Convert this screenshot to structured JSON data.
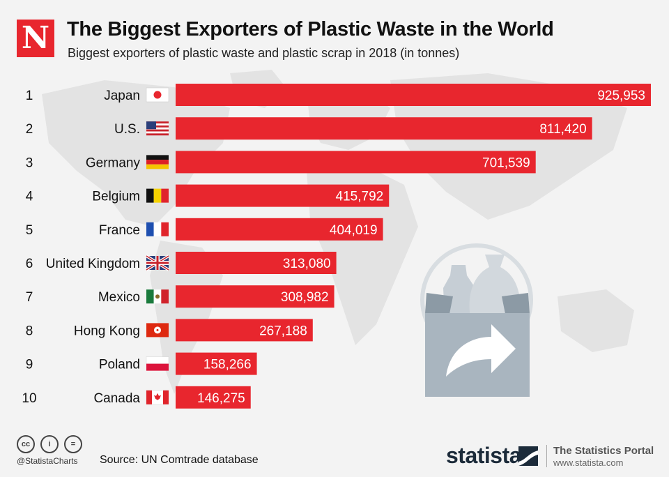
{
  "header": {
    "logo_letter": "N",
    "title": "The Biggest Exporters of Plastic Waste in the World",
    "subtitle": "Biggest exporters of plastic waste and plastic scrap in 2018 (in tonnes)"
  },
  "chart_data": {
    "type": "bar",
    "orientation": "horizontal",
    "title": "The Biggest Exporters of Plastic Waste in the World",
    "subtitle": "Biggest exporters of plastic waste and plastic scrap in 2018 (in tonnes)",
    "ranks": [
      "1",
      "2",
      "3",
      "4",
      "5",
      "6",
      "7",
      "8",
      "9",
      "10"
    ],
    "categories": [
      "Japan",
      "U.S.",
      "Germany",
      "Belgium",
      "France",
      "United Kingdom",
      "Mexico",
      "Hong Kong",
      "Poland",
      "Canada"
    ],
    "values": [
      925953,
      811420,
      701539,
      415792,
      404019,
      313080,
      308982,
      267188,
      158266,
      146275
    ],
    "value_labels": [
      "925,953",
      "811,420",
      "701,539",
      "415,792",
      "404,019",
      "313,080",
      "308,982",
      "267,188",
      "158,266",
      "146,275"
    ],
    "flags": [
      "japan-flag",
      "us-flag",
      "germany-flag",
      "belgium-flag",
      "france-flag",
      "uk-flag",
      "mexico-flag",
      "hong-kong-flag",
      "poland-flag",
      "canada-flag"
    ],
    "xlim": [
      0,
      925953
    ],
    "grid": false,
    "bar_color": "#e8262e",
    "label_color": "#ffffff"
  },
  "colors": {
    "accent": "#e8262e",
    "background": "#f3f3f3",
    "map": "#e4e4e4",
    "illustration": "#a9b5bf"
  },
  "footer": {
    "cc_icons": [
      "cc",
      "i",
      "="
    ],
    "handle": "@StatistaCharts",
    "source": "Source: UN Comtrade database",
    "statista": "statista",
    "portal": "The Statistics Portal",
    "portal_url": "www.statista.com"
  }
}
